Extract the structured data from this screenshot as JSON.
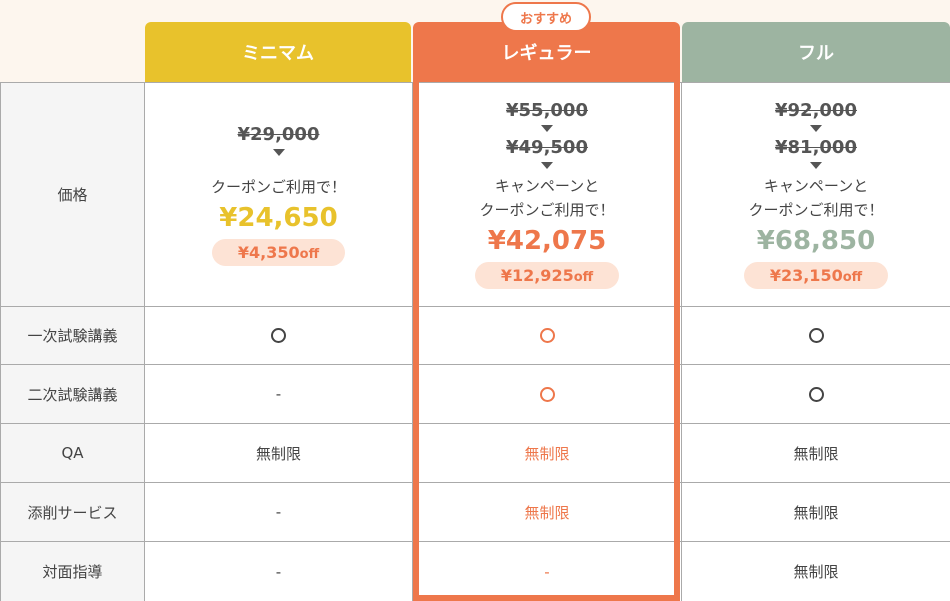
{
  "badge": "おすすめ",
  "plans": [
    {
      "name": "ミニマム"
    },
    {
      "name": "レギュラー"
    },
    {
      "name": "フル"
    }
  ],
  "price": {
    "label": "価格",
    "minimum": {
      "original": "¥29,000",
      "note1": "クーポンご利用で！",
      "final": "¥24,650",
      "off": "¥4,350",
      "off_suffix": "off"
    },
    "regular": {
      "original": "¥55,000",
      "campaign": "¥49,500",
      "note1": "キャンペーンと",
      "note2": "クーポンご利用で！",
      "final": "¥42,075",
      "off": "¥12,925",
      "off_suffix": "off"
    },
    "full": {
      "original": "¥92,000",
      "campaign": "¥81,000",
      "note1": "キャンペーンと",
      "note2": "クーポンご利用で！",
      "final": "¥68,850",
      "off": "¥23,150",
      "off_suffix": "off"
    }
  },
  "features": [
    {
      "label": "一次試験講義",
      "minimum": "○",
      "regular": "○",
      "full": "○"
    },
    {
      "label": "二次試験講義",
      "minimum": "-",
      "regular": "○",
      "full": "○"
    },
    {
      "label": "QA",
      "minimum": "無制限",
      "regular": "無制限",
      "full": "無制限"
    },
    {
      "label": "添削サービス",
      "minimum": "-",
      "regular": "無制限",
      "full": "無制限"
    },
    {
      "label": "対面指導",
      "minimum": "-",
      "regular": "-",
      "full": "無制限"
    }
  ],
  "colors": {
    "minimum": "#e8c22c",
    "regular": "#ee774b",
    "full": "#9db4a1"
  }
}
